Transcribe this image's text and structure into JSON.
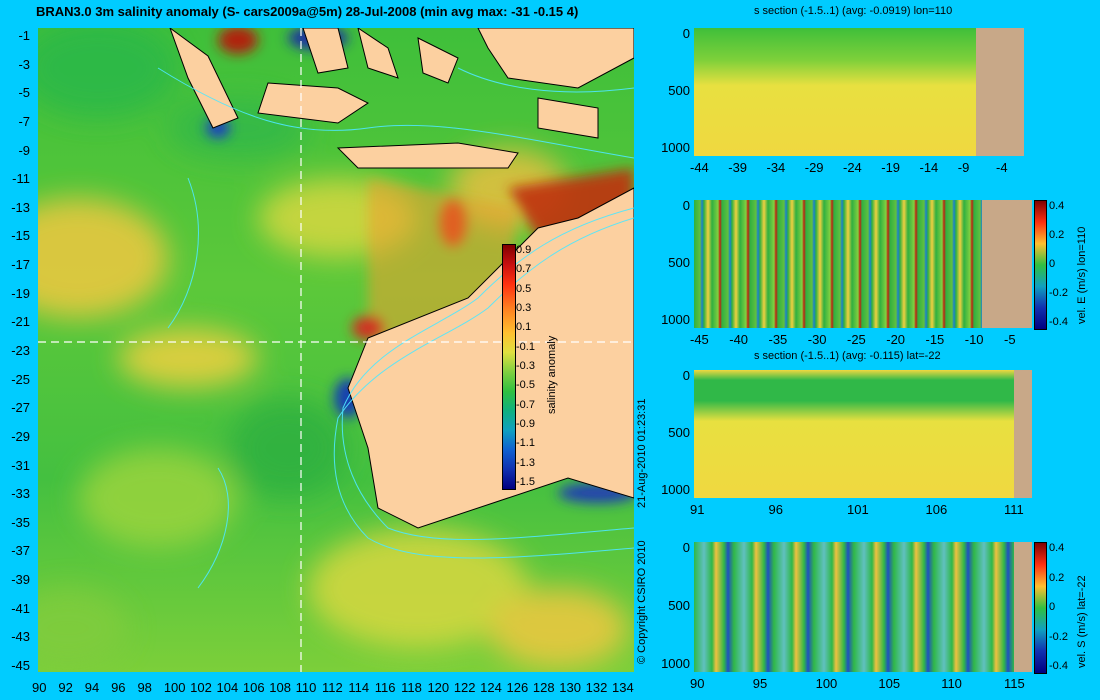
{
  "main_map": {
    "title": "BRAN3.0 3m salinity anomaly (S- cars2009a@5m) 28-Jul-2008 (min avg max: -31 -0.15 4)",
    "y_ticks": [
      "-1",
      "-3",
      "-5",
      "-7",
      "-9",
      "-11",
      "-13",
      "-15",
      "-17",
      "-19",
      "-21",
      "-23",
      "-25",
      "-27",
      "-29",
      "-31",
      "-33",
      "-35",
      "-37",
      "-39",
      "-41",
      "-43",
      "-45"
    ],
    "x_ticks": [
      "90",
      "92",
      "94",
      "96",
      "98",
      "100",
      "102",
      "104",
      "106",
      "108",
      "110",
      "112",
      "114",
      "116",
      "118",
      "120",
      "122",
      "124",
      "126",
      "128",
      "130",
      "132",
      "134"
    ],
    "colorbar_label": "salinity anomaly",
    "colorbar_ticks": [
      "0.9",
      "0.7",
      "0.5",
      "0.3",
      "0.1",
      "-0.1",
      "-0.3",
      "-0.5",
      "-0.7",
      "-0.9",
      "-1.1",
      "-1.3",
      "-1.5"
    ],
    "section_lon": 110,
    "section_lat": -22,
    "copyright": "© Copyright CSIRO 2010",
    "timestamp": "21-Aug-2010 01:23:31"
  },
  "panels": [
    {
      "title": "s section (-1.5..1) (avg: -0.0919) lon=110",
      "y_ticks": [
        "0",
        "500",
        "1000"
      ],
      "x_ticks": [
        "-44",
        "-39",
        "-34",
        "-29",
        "-24",
        "-19",
        "-14",
        "-9",
        "-4"
      ],
      "colorbar_label": "",
      "colorbar_ticks": []
    },
    {
      "title": "",
      "y_ticks": [
        "0",
        "500",
        "1000"
      ],
      "x_ticks": [
        "-45",
        "-40",
        "-35",
        "-30",
        "-25",
        "-20",
        "-15",
        "-10",
        "-5"
      ],
      "colorbar_label": "vel. E (m/s) lon=110",
      "colorbar_ticks": [
        "0.4",
        "0.2",
        "0",
        "-0.2",
        "-0.4"
      ]
    },
    {
      "title": "s section (-1.5..1) (avg: -0.115) lat=-22",
      "y_ticks": [
        "0",
        "500",
        "1000"
      ],
      "x_ticks": [
        "91",
        "96",
        "101",
        "106",
        "111"
      ],
      "colorbar_label": "",
      "colorbar_ticks": []
    },
    {
      "title": "",
      "y_ticks": [
        "0",
        "500",
        "1000"
      ],
      "x_ticks": [
        "90",
        "95",
        "100",
        "105",
        "110",
        "115"
      ],
      "colorbar_label": "vel. S (m/s) lat=-22",
      "colorbar_ticks": [
        "0.4",
        "0.2",
        "0",
        "-0.2",
        "-0.4"
      ]
    }
  ],
  "colors": {
    "background": "#00ccff",
    "land": "#fcd0a0",
    "seafloor": "#c8a888",
    "coast_contour": "#4ee8ff"
  }
}
